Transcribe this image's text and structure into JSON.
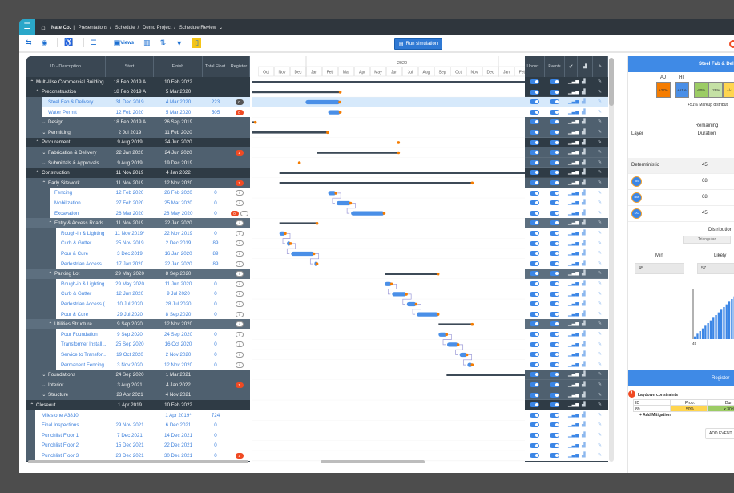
{
  "topbar": {
    "menu_icon": "hamburger-icon",
    "home_icon": "home-icon",
    "breadcrumb": [
      "Nate Co.",
      "Presentations",
      "Schedule",
      "Demo Project",
      "Schedule Review"
    ]
  },
  "toolbar": {
    "views_label": "Views",
    "run_simulation_label": "Run simulation"
  },
  "table": {
    "headers": [
      "ID - Description",
      "Start",
      "Finish",
      "Total Float",
      "Register"
    ],
    "rows": [
      {
        "desc": "Multi-Use Commercial Building",
        "start": "18 Feb 2019 A",
        "finish": "10 Feb 2022",
        "float": "",
        "type": "top",
        "level": 0,
        "arrow": "^",
        "reg": []
      },
      {
        "desc": "Preconstruction",
        "start": "18 Feb 2019 A",
        "finish": "5 Mar 2020",
        "float": "",
        "type": "top",
        "level": 1,
        "arrow": "^",
        "reg": []
      },
      {
        "desc": "Steel Fab & Delivery",
        "start": "31 Dec 2019",
        "finish": "4 Mar 2020",
        "float": "223",
        "type": "sel",
        "level": 2,
        "reg": [
          {
            "kind": "gray",
            "text": "0"
          }
        ]
      },
      {
        "desc": "Water Permit",
        "start": "12 Feb 2020",
        "finish": "5 Mar 2020",
        "float": "505",
        "type": "leaf",
        "level": 2,
        "reg": [
          {
            "kind": "red",
            "text": "0"
          }
        ]
      },
      {
        "desc": "Design",
        "start": "18 Feb 2019 A",
        "finish": "26 Sep 2019",
        "float": "",
        "type": "group",
        "level": 2,
        "arrow": "v",
        "reg": []
      },
      {
        "desc": "Permitting",
        "start": "2 Jul 2019",
        "finish": "11 Feb 2020",
        "float": "",
        "type": "group",
        "level": 2,
        "arrow": "v",
        "reg": []
      },
      {
        "desc": "Procurement",
        "start": "9 Aug 2019",
        "finish": "24 Jun 2020",
        "float": "",
        "type": "top",
        "level": 1,
        "arrow": "^",
        "reg": []
      },
      {
        "desc": "Fabrication & Delivery",
        "start": "22 Jan 2020",
        "finish": "24 Jun 2020",
        "float": "",
        "type": "group",
        "level": 2,
        "arrow": "v",
        "reg": [
          {
            "kind": "red",
            "text": "1"
          }
        ]
      },
      {
        "desc": "Submittals & Approvals",
        "start": "9 Aug 2019",
        "finish": "19 Dec 2019",
        "float": "",
        "type": "group",
        "level": 2,
        "arrow": "v",
        "reg": []
      },
      {
        "desc": "Construction",
        "start": "11 Nov 2019",
        "finish": "4 Jan 2022",
        "float": "",
        "type": "top",
        "level": 1,
        "arrow": "^",
        "reg": []
      },
      {
        "desc": "Early Sitework",
        "start": "11 Nov 2019",
        "finish": "12 Nov 2020",
        "float": "",
        "type": "group",
        "level": 2,
        "arrow": "^",
        "reg": [
          {
            "kind": "red",
            "text": "1"
          }
        ]
      },
      {
        "desc": "Fencing",
        "start": "12 Feb 2020",
        "finish": "26 Feb 2020",
        "float": "0",
        "type": "leaf",
        "level": 3,
        "reg": [
          {
            "kind": "info",
            "text": "i"
          }
        ]
      },
      {
        "desc": "Mobilization",
        "start": "27 Feb 2020",
        "finish": "25 Mar 2020",
        "float": "0",
        "type": "leaf",
        "level": 3,
        "reg": [
          {
            "kind": "info",
            "text": "i"
          }
        ]
      },
      {
        "desc": "Excavation",
        "start": "26 Mar 2020",
        "finish": "28 May 2020",
        "float": "0",
        "type": "leaf",
        "level": 3,
        "reg": [
          {
            "kind": "red",
            "text": "0"
          },
          {
            "kind": "info",
            "text": "i"
          }
        ]
      },
      {
        "desc": "Entry & Access Roads",
        "start": "11 Nov 2019",
        "finish": "22 Jan 2020",
        "float": "",
        "type": "sub",
        "level": 3,
        "arrow": "^",
        "reg": [
          {
            "kind": "info",
            "text": "i"
          }
        ]
      },
      {
        "desc": "Rough-in & Lighting",
        "start": "11 Nov 2019*",
        "finish": "22 Nov 2019",
        "float": "0",
        "type": "leaf",
        "level": 4,
        "reg": [
          {
            "kind": "info",
            "text": "i"
          }
        ]
      },
      {
        "desc": "Curb & Gutter",
        "start": "25 Nov 2019",
        "finish": "2 Dec 2019",
        "float": "89",
        "type": "leaf",
        "level": 4,
        "reg": [
          {
            "kind": "info",
            "text": "i"
          }
        ]
      },
      {
        "desc": "Pour & Cure",
        "start": "3 Dec 2019",
        "finish": "16 Jan 2020",
        "float": "89",
        "type": "leaf",
        "level": 4,
        "reg": [
          {
            "kind": "info",
            "text": "i"
          }
        ]
      },
      {
        "desc": "Pedestrian Access",
        "start": "17 Jan 2020",
        "finish": "22 Jan 2020",
        "float": "89",
        "type": "leaf",
        "level": 4,
        "reg": [
          {
            "kind": "info",
            "text": "i"
          }
        ]
      },
      {
        "desc": "Parking Lot",
        "start": "29 May 2020",
        "finish": "8 Sep 2020",
        "float": "",
        "type": "sub",
        "level": 3,
        "arrow": "^",
        "reg": [
          {
            "kind": "info",
            "text": "i"
          }
        ]
      },
      {
        "desc": "Rough-in & Lighting",
        "start": "29 May 2020",
        "finish": "11 Jun 2020",
        "float": "0",
        "type": "leaf",
        "level": 4,
        "reg": [
          {
            "kind": "info",
            "text": "i"
          }
        ]
      },
      {
        "desc": "Curb & Gutter",
        "start": "12 Jun 2020",
        "finish": "9 Jul 2020",
        "float": "0",
        "type": "leaf",
        "level": 4,
        "reg": [
          {
            "kind": "info",
            "text": "i"
          }
        ]
      },
      {
        "desc": "Pedestrian Access (...",
        "start": "10 Jul 2020",
        "finish": "28 Jul 2020",
        "float": "0",
        "type": "leaf",
        "level": 4,
        "reg": [
          {
            "kind": "info",
            "text": "i"
          }
        ]
      },
      {
        "desc": "Pour & Cure",
        "start": "29 Jul 2020",
        "finish": "8 Sep 2020",
        "float": "0",
        "type": "leaf",
        "level": 4,
        "reg": [
          {
            "kind": "info",
            "text": "i"
          }
        ]
      },
      {
        "desc": "Utilities Structure",
        "start": "9 Sep 2020",
        "finish": "12 Nov 2020",
        "float": "",
        "type": "sub",
        "level": 3,
        "arrow": "^",
        "reg": [
          {
            "kind": "info",
            "text": "i"
          }
        ]
      },
      {
        "desc": "Pour Foundation",
        "start": "9 Sep 2020",
        "finish": "24 Sep 2020",
        "float": "0",
        "type": "leaf",
        "level": 4,
        "reg": [
          {
            "kind": "info",
            "text": "i"
          }
        ]
      },
      {
        "desc": "Transformer Install...",
        "start": "25 Sep 2020",
        "finish": "16 Oct 2020",
        "float": "0",
        "type": "leaf",
        "level": 4,
        "reg": [
          {
            "kind": "info",
            "text": "i"
          }
        ]
      },
      {
        "desc": "Service to Transfor...",
        "start": "19 Oct 2020",
        "finish": "2 Nov 2020",
        "float": "0",
        "type": "leaf",
        "level": 4,
        "reg": [
          {
            "kind": "info",
            "text": "i"
          }
        ]
      },
      {
        "desc": "Permanent Fencing",
        "start": "3 Nov 2020",
        "finish": "12 Nov 2020",
        "float": "0",
        "type": "leaf",
        "level": 4,
        "reg": [
          {
            "kind": "info",
            "text": "i"
          }
        ]
      },
      {
        "desc": "Foundations",
        "start": "24 Sep 2020",
        "finish": "1 Mar 2021",
        "float": "",
        "type": "group",
        "level": 2,
        "arrow": "v",
        "reg": []
      },
      {
        "desc": "Interior",
        "start": "3 Aug 2021",
        "finish": "4 Jan 2022",
        "float": "",
        "type": "group",
        "level": 2,
        "arrow": "v",
        "reg": [
          {
            "kind": "red",
            "text": "1"
          }
        ]
      },
      {
        "desc": "Structure",
        "start": "23 Apr 2021",
        "finish": "4 Nov 2021",
        "float": "",
        "type": "group",
        "level": 2,
        "arrow": "v",
        "reg": []
      },
      {
        "desc": "Closeout",
        "start": "1 Apr 2019",
        "finish": "10 Feb 2022",
        "float": "",
        "type": "top",
        "level": 0,
        "arrow": "^",
        "reg": []
      },
      {
        "desc": "Milestone A3810",
        "start": "",
        "finish": "1 Apr 2019*",
        "float": "724",
        "type": "leaf",
        "level": 1,
        "reg": []
      },
      {
        "desc": "Final Inspections",
        "start": "29 Nov 2021",
        "finish": "6 Dec 2021",
        "float": "0",
        "type": "leaf",
        "level": 1,
        "reg": []
      },
      {
        "desc": "Punchlist Floor 1",
        "start": "7 Dec 2021",
        "finish": "14 Dec 2021",
        "float": "0",
        "type": "leaf",
        "level": 1,
        "reg": []
      },
      {
        "desc": "Punchlist Floor 2",
        "start": "15 Dec 2021",
        "finish": "22 Dec 2021",
        "float": "0",
        "type": "leaf",
        "level": 1,
        "reg": []
      },
      {
        "desc": "Punchlist Floor 3",
        "start": "23 Dec 2021",
        "finish": "30 Dec 2021",
        "float": "0",
        "type": "leaf",
        "level": 1,
        "reg": [
          {
            "kind": "red",
            "text": "1"
          }
        ]
      }
    ]
  },
  "timeline": {
    "year": "2020",
    "months": [
      "Oct",
      "Nov",
      "Dec",
      "Jan",
      "Feb",
      "Mar",
      "Apr",
      "May",
      "Jun",
      "Jul",
      "Aug",
      "Sep",
      "Oct",
      "Nov",
      "Dec",
      "Jan",
      "Feb"
    ]
  },
  "right_columns": {
    "headers": [
      "Uncert...",
      "Events"
    ],
    "icons": [
      "check-circle-icon",
      "chart-icon",
      "brush-icon"
    ]
  },
  "colors": {
    "accent": "#3f8ae6",
    "bar": "#4a8fe7",
    "summary_bar": "#3d4a57",
    "milestone_dot": "#f57c00",
    "alert": "#f04a23"
  },
  "panel": {
    "title": "Steel Fab & Deli",
    "markup_labels": [
      "AJ",
      "HI"
    ],
    "markups": [
      {
        "text": "+27%",
        "color": "#f57c00"
      },
      {
        "text": "+51%",
        "color": "#4a8fe7"
      },
      {
        "text": "-90%",
        "color": "#9ccc65"
      },
      {
        "text": "-29%",
        "color": "#c5e1a5"
      },
      {
        "text": "+/-1",
        "color": "#ffd54f"
      }
    ],
    "markup_note": "+51% Markup distributi",
    "col_layer": "Layer",
    "col_remaining": "Remaining Duration",
    "layers": [
      {
        "name": "Deterministic",
        "value": "45"
      },
      {
        "avatar": "JB",
        "value": "68"
      },
      {
        "avatar": "BM",
        "value": "68"
      },
      {
        "avatar": "DC",
        "value": "45"
      }
    ],
    "distribution_label": "Distribution",
    "distribution_type": "Triangular",
    "min_label": "Min",
    "likely_label": "Likely",
    "min_value": "45",
    "likely_value": "57",
    "histogram_axis_label": "45",
    "histogram": [
      1,
      2,
      3,
      4,
      5,
      6,
      7,
      8,
      9,
      10,
      11,
      12,
      13,
      14,
      15,
      16,
      17,
      18,
      17,
      16,
      15
    ],
    "register_title": "Register",
    "constraint_title": "Laydown constraints",
    "constraint_headers": [
      "ID",
      "Prob.",
      "Dur."
    ],
    "constraint_row": [
      "89",
      "50%",
      "x 30d"
    ],
    "add_mitigation": "+ Add Mitigation",
    "add_event": "ADD EVENT"
  }
}
